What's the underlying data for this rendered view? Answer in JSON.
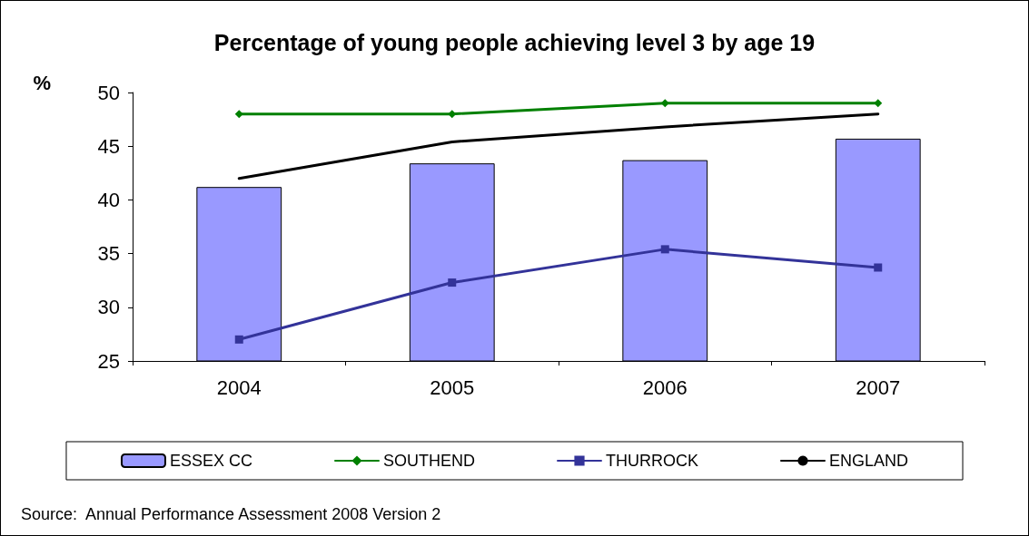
{
  "chart_data": {
    "type": "bar",
    "title": "Percentage of young people achieving level 3 by age 19",
    "ylabel": "%",
    "categories": [
      "2004",
      "2005",
      "2006",
      "2007"
    ],
    "series": [
      {
        "name": "ESSEX CC",
        "color": "#9999ff",
        "values": [
          41.2,
          43.4,
          43.7,
          45.7
        ]
      },
      {
        "name": "SOUTHEND",
        "type": "line",
        "color": "#008000",
        "marker": "diamond",
        "values": [
          48,
          48,
          49,
          49
        ]
      },
      {
        "name": "THURROCK",
        "type": "line",
        "color": "#333399",
        "marker": "square",
        "values": [
          27,
          32.3,
          35.4,
          33.7
        ]
      },
      {
        "name": "ENGLAND",
        "type": "line",
        "color": "#000000",
        "marker": "none",
        "values": [
          42,
          45.4,
          46.8,
          48
        ]
      }
    ],
    "ylim": [
      25,
      50
    ],
    "yticks": [
      25,
      30,
      35,
      40,
      45,
      50
    ],
    "grid": false,
    "legend": "bottom",
    "annotations": [
      "Source:  Annual Performance Assessment 2008 Version 2"
    ]
  }
}
